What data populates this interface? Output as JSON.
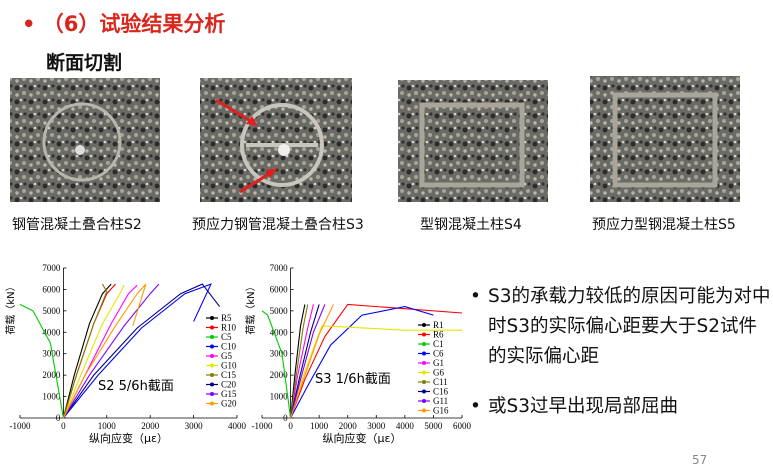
{
  "header": {
    "title": "（6）试验结果分析",
    "subtitle": "断面切割"
  },
  "photos": [
    {
      "caption": "钢管混凝土叠合柱S2"
    },
    {
      "caption": "预应力钢管混凝土叠合柱S3"
    },
    {
      "caption": "型钢混凝土柱S4"
    },
    {
      "caption": "预应力型钢混凝土柱S5"
    }
  ],
  "charts": [
    {
      "type": "line",
      "xlabel": "纵向应变（με）",
      "ylabel": "荷载（kN）",
      "annotation": "S2 5/6h截面",
      "xlim": [
        -1000,
        4000
      ],
      "xticks": [
        -1000,
        0,
        1000,
        2000,
        3000,
        4000
      ],
      "ylim": [
        0,
        7000
      ],
      "yticks": [
        0,
        1000,
        2000,
        3000,
        4000,
        5000,
        6000,
        7000
      ],
      "series": [
        {
          "name": "R5",
          "color": "#000000",
          "x": [
            0,
            250,
            600,
            900,
            1100
          ],
          "y": [
            0,
            2000,
            4400,
            5800,
            6250
          ]
        },
        {
          "name": "R10",
          "color": "#ff0000",
          "x": [
            0,
            300,
            700,
            1000,
            1200
          ],
          "y": [
            0,
            2000,
            4400,
            5800,
            6250
          ]
        },
        {
          "name": "C5",
          "color": "#00cc00",
          "x": [
            0,
            -300,
            -700,
            -1000
          ],
          "y": [
            0,
            3500,
            5000,
            5300
          ]
        },
        {
          "name": "C10",
          "color": "#0000ff",
          "x": [
            0,
            800,
            1800,
            2800,
            3400,
            3000
          ],
          "y": [
            0,
            2000,
            4200,
            5800,
            6250,
            4500
          ]
        },
        {
          "name": "G5",
          "color": "#ff00ff",
          "x": [
            0,
            500,
            1100,
            1500,
            1700
          ],
          "y": [
            0,
            2000,
            4400,
            5800,
            6200
          ]
        },
        {
          "name": "G10",
          "color": "#e6e600",
          "x": [
            0,
            400,
            900,
            1300,
            1400
          ],
          "y": [
            0,
            2000,
            4400,
            5800,
            6200
          ]
        },
        {
          "name": "C15",
          "color": "#808000",
          "x": [
            0,
            300,
            700,
            1000,
            900
          ],
          "y": [
            0,
            2000,
            4400,
            5900,
            6250
          ]
        },
        {
          "name": "C20",
          "color": "#000080",
          "x": [
            0,
            700,
            1700,
            2700,
            3200,
            3600
          ],
          "y": [
            0,
            2000,
            4200,
            5800,
            6250,
            5200
          ]
        },
        {
          "name": "G15",
          "color": "#8000ff",
          "x": [
            0,
            600,
            1400,
            2000,
            2200
          ],
          "y": [
            0,
            2000,
            4300,
            5800,
            6250
          ]
        },
        {
          "name": "G20",
          "color": "#ff9900",
          "x": [
            0,
            500,
            1200,
            1700,
            1900,
            1600
          ],
          "y": [
            0,
            2000,
            4300,
            5800,
            6250,
            4300
          ]
        }
      ]
    },
    {
      "type": "line",
      "xlabel": "纵向应变（με）",
      "ylabel": "荷载（kN）",
      "annotation": "S3  1/6h截面",
      "xlim": [
        -1000,
        6000
      ],
      "xticks": [
        -1000,
        0,
        1000,
        2000,
        3000,
        4000,
        5000,
        6000
      ],
      "ylim": [
        0,
        7000
      ],
      "yticks": [
        0,
        1000,
        2000,
        3000,
        4000,
        5000,
        6000,
        7000
      ],
      "series": [
        {
          "name": "R1",
          "color": "#000000",
          "x": [
            0,
            150,
            350,
            500
          ],
          "y": [
            0,
            2000,
            4300,
            5300
          ]
        },
        {
          "name": "R6",
          "color": "#ff0000",
          "x": [
            0,
            500,
            1200,
            2000,
            4000,
            6000
          ],
          "y": [
            0,
            1800,
            3800,
            5300,
            5100,
            4900
          ]
        },
        {
          "name": "C1",
          "color": "#00cc00",
          "x": [
            0,
            -300,
            -800,
            -1000
          ],
          "y": [
            0,
            3000,
            4800,
            5000
          ]
        },
        {
          "name": "C6",
          "color": "#0000ff",
          "x": [
            0,
            600,
            1400,
            2500,
            4000,
            5000
          ],
          "y": [
            0,
            1500,
            3400,
            4800,
            5200,
            4800
          ]
        },
        {
          "name": "G1",
          "color": "#ff00ff",
          "x": [
            0,
            250,
            600,
            800
          ],
          "y": [
            0,
            2000,
            4200,
            5300
          ]
        },
        {
          "name": "G6",
          "color": "#e6e600",
          "x": [
            0,
            400,
            900,
            1100,
            4000,
            6000
          ],
          "y": [
            0,
            1800,
            3600,
            4300,
            4100,
            4100
          ]
        },
        {
          "name": "C11",
          "color": "#808000",
          "x": [
            0,
            200,
            450,
            600
          ],
          "y": [
            0,
            2000,
            4300,
            5300
          ]
        },
        {
          "name": "C16",
          "color": "#000080",
          "x": [
            0,
            300,
            700,
            1000
          ],
          "y": [
            0,
            1800,
            4000,
            5300
          ]
        },
        {
          "name": "G11",
          "color": "#8000ff",
          "x": [
            0,
            350,
            800,
            1200
          ],
          "y": [
            0,
            1800,
            4000,
            5300
          ]
        },
        {
          "name": "G16",
          "color": "#ff9900",
          "x": [
            0,
            450,
            1000,
            1500
          ],
          "y": [
            0,
            1800,
            3900,
            5300
          ]
        }
      ]
    }
  ],
  "bullets": [
    "S3的承载力较低的原因可能为对中时S3的实际偏心距要大于S2试件的实际偏心距",
    "或S3过早出现局部屈曲"
  ],
  "page_number": "57"
}
